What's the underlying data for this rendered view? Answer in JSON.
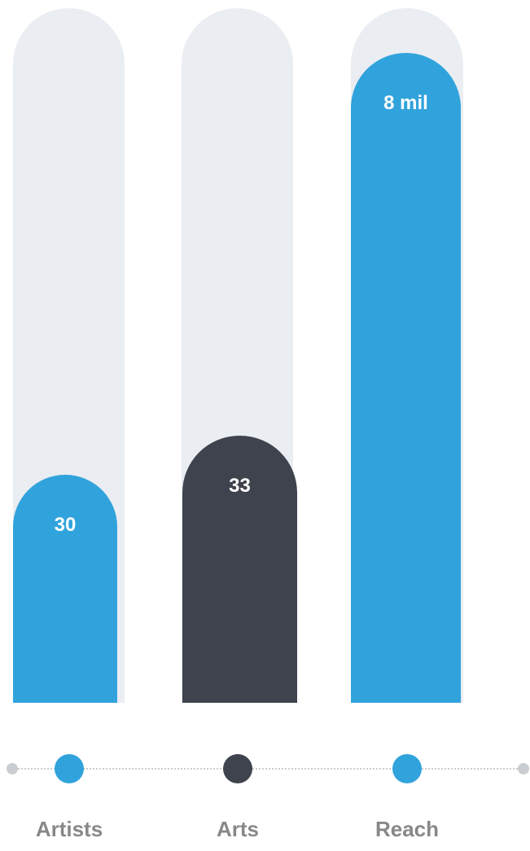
{
  "chart_data": {
    "type": "bar",
    "categories": [
      "Artists",
      "Arts",
      "Reach"
    ],
    "series": [
      {
        "values": [
          "30",
          "33",
          "8 mil"
        ],
        "fill_fraction": [
          0.328,
          0.385,
          0.936
        ],
        "colors": [
          "#31a3dc",
          "#3f434d",
          "#31a3dc"
        ]
      }
    ],
    "title": "",
    "xlabel": "",
    "ylabel": "",
    "grid": false
  },
  "colors": {
    "accent_blue": "#31a3dc",
    "dark": "#3f434d",
    "track": "#eaedf2",
    "timeline": "#c9ccd1",
    "label": "#888888"
  }
}
